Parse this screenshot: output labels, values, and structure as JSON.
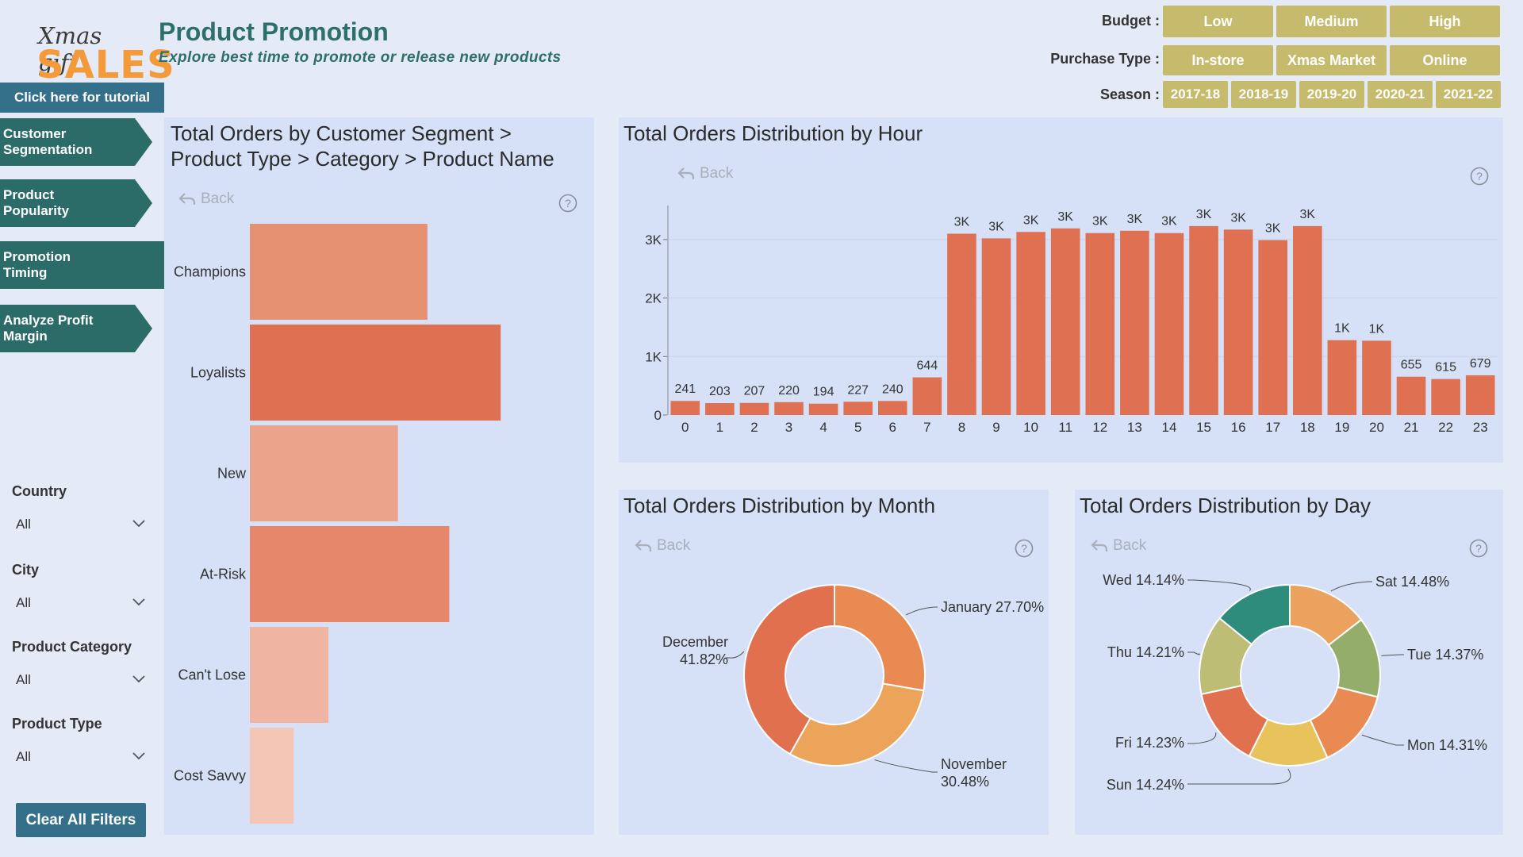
{
  "header": {
    "logo_line1": "Xmas gift",
    "logo_line2": "SALES",
    "title": "Product Promotion",
    "subtitle": "Explore best time to promote or release new products"
  },
  "filters": {
    "budget_label": "Budget :",
    "budget": [
      "Low",
      "Medium",
      "High"
    ],
    "purchase_label": "Purchase Type :",
    "purchase": [
      "In-store",
      "Xmas Market",
      "Online"
    ],
    "season_label": "Season :",
    "season": [
      "2017-18",
      "2018-19",
      "2019-20",
      "2020-21",
      "2021-22"
    ]
  },
  "sidebar": {
    "tutorial": "Click here for tutorial",
    "nav": [
      {
        "label_1": "Customer",
        "label_2": "Segmentation"
      },
      {
        "label_1": "Product",
        "label_2": "Popularity"
      },
      {
        "label_1": "Promotion",
        "label_2": "Timing"
      },
      {
        "label_1": "Analyze Profit",
        "label_2": "Margin"
      }
    ],
    "slicers": [
      {
        "label": "Country",
        "value": "All"
      },
      {
        "label": "City",
        "value": "All"
      },
      {
        "label": "Product Category",
        "value": "All"
      },
      {
        "label": "Product Type",
        "value": "All"
      }
    ],
    "clear": "Clear All Filters"
  },
  "common": {
    "back": "Back"
  },
  "colors": {
    "accent_teal": "#2b6b68",
    "button_blue": "#34708a",
    "filter_gold": "#c6bb6c",
    "bar_orange": "#e07052"
  },
  "chart_data": [
    {
      "type": "bar",
      "orientation": "horizontal",
      "title_line1": "Total Orders by Customer Segment >",
      "title_line2": "Product Type > Category > Product Name",
      "categories": [
        "Champions",
        "Loyalists",
        "New",
        "At-Risk",
        "Can't Lose",
        "Cost Savvy"
      ],
      "values": [
        235,
        332,
        196,
        264,
        104,
        58
      ],
      "colors": [
        "#e69272",
        "#e07052",
        "#eaa48b",
        "#e6866a",
        "#f0b5a2",
        "#f4c6b6"
      ],
      "xlim": [
        0,
        420
      ]
    },
    {
      "type": "bar",
      "title": "Total Orders Distribution by Hour",
      "categories": [
        "0",
        "1",
        "2",
        "3",
        "4",
        "5",
        "6",
        "7",
        "8",
        "9",
        "10",
        "11",
        "12",
        "13",
        "14",
        "15",
        "16",
        "17",
        "18",
        "19",
        "20",
        "21",
        "22",
        "23"
      ],
      "values": [
        241,
        203,
        207,
        220,
        194,
        227,
        240,
        644,
        3100,
        3020,
        3130,
        3190,
        3110,
        3150,
        3110,
        3230,
        3170,
        2990,
        3230,
        1280,
        1270,
        655,
        615,
        679
      ],
      "data_labels": [
        "241",
        "203",
        "207",
        "220",
        "194",
        "227",
        "240",
        "644",
        "3K",
        "3K",
        "3K",
        "3K",
        "3K",
        "3K",
        "3K",
        "3K",
        "3K",
        "3K",
        "3K",
        "1K",
        "1K",
        "655",
        "615",
        "679"
      ],
      "yticks": [
        "0",
        "1K",
        "2K",
        "3K"
      ],
      "ytick_values": [
        0,
        1000,
        2000,
        3000
      ],
      "ylim": [
        0,
        3500
      ]
    },
    {
      "type": "pie",
      "donut": true,
      "title": "Total Orders Distribution by Month",
      "slices": [
        {
          "label": "January",
          "value": 27.7,
          "pct": "27.70%",
          "color": "#e98a52"
        },
        {
          "label": "November",
          "value": 30.48,
          "pct": "30.48%",
          "color": "#eca45a"
        },
        {
          "label": "December",
          "value": 41.82,
          "pct": "41.82%",
          "color": "#e0704e"
        }
      ]
    },
    {
      "type": "pie",
      "donut": true,
      "title": "Total Orders Distribution by Day",
      "slices": [
        {
          "label": "Sat",
          "value": 14.48,
          "pct": "14.48%",
          "color": "#eba25e"
        },
        {
          "label": "Tue",
          "value": 14.37,
          "pct": "14.37%",
          "color": "#95ad6b"
        },
        {
          "label": "Mon",
          "value": 14.31,
          "pct": "14.31%",
          "color": "#e98a52"
        },
        {
          "label": "Sun",
          "value": 14.24,
          "pct": "14.24%",
          "color": "#e8c35c"
        },
        {
          "label": "Fri",
          "value": 14.23,
          "pct": "14.23%",
          "color": "#e0704e"
        },
        {
          "label": "Thu",
          "value": 14.21,
          "pct": "14.21%",
          "color": "#bdbd75"
        },
        {
          "label": "Wed",
          "value": 14.14,
          "pct": "14.14%",
          "color": "#2e8c7c"
        }
      ]
    }
  ]
}
